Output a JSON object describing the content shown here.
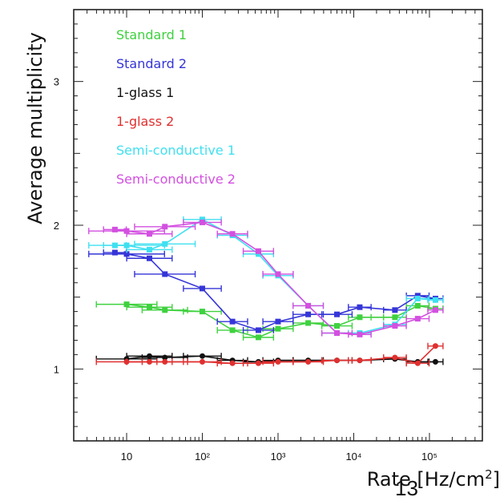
{
  "page_number": "13",
  "chart_data": {
    "type": "line",
    "title": "",
    "xlabel": "Rate [Hz/cm²]",
    "ylabel": "Average multiplicity",
    "xscale": "log",
    "xlim": [
      2,
      500000
    ],
    "ylim": [
      0.5,
      3.5
    ],
    "x_ticks": [
      {
        "value": 10,
        "label": "10"
      },
      {
        "value": 100,
        "label": "10²"
      },
      {
        "value": 1000,
        "label": "10³"
      },
      {
        "value": 10000,
        "label": "10⁴"
      },
      {
        "value": 100000,
        "label": "10⁵"
      }
    ],
    "y_ticks": [
      {
        "value": 1,
        "label": "1"
      },
      {
        "value": 2,
        "label": "2"
      },
      {
        "value": 3,
        "label": "3"
      }
    ],
    "legend_position": "top-left",
    "series": [
      {
        "name": "Standard 1",
        "color": "#3fd13f",
        "x": [
          10,
          20,
          32,
          100,
          250,
          550,
          1000,
          2500,
          6000,
          12000,
          35000,
          70000,
          120000
        ],
        "y": [
          1.45,
          1.43,
          1.41,
          1.4,
          1.27,
          1.22,
          1.28,
          1.32,
          1.3,
          1.36,
          1.36,
          1.44,
          1.42
        ],
        "xerr": [
          0.4,
          0.3,
          0.3,
          0.25,
          0.2,
          0.2,
          0.2,
          0.2,
          0.2,
          0.15,
          0.15,
          0.15,
          0.1
        ]
      },
      {
        "name": "Standard 2",
        "color": "#3535d8",
        "x": [
          7,
          10,
          20,
          32,
          100,
          250,
          550,
          1000,
          2500,
          6000,
          12000,
          35000,
          70000,
          120000
        ],
        "y": [
          1.81,
          1.8,
          1.77,
          1.66,
          1.56,
          1.33,
          1.27,
          1.33,
          1.38,
          1.38,
          1.43,
          1.41,
          1.51,
          1.49
        ],
        "xerr": [
          0.15,
          0.5,
          0.3,
          0.4,
          0.25,
          0.2,
          0.2,
          0.2,
          0.2,
          0.2,
          0.15,
          0.15,
          0.15,
          0.1
        ]
      },
      {
        "name": "1-glass 1",
        "color": "#111111",
        "x": [
          10,
          20,
          32,
          100,
          250,
          550,
          1000,
          2500,
          6000,
          12000,
          35000,
          70000,
          120000
        ],
        "y": [
          1.07,
          1.09,
          1.08,
          1.09,
          1.06,
          1.05,
          1.06,
          1.06,
          1.06,
          1.06,
          1.07,
          1.05,
          1.05
        ],
        "xerr": [
          0.4,
          0.3,
          0.3,
          0.25,
          0.2,
          0.2,
          0.2,
          0.2,
          0.2,
          0.15,
          0.15,
          0.15,
          0.1
        ]
      },
      {
        "name": "1-glass 2",
        "color": "#e03030",
        "x": [
          10,
          20,
          32,
          100,
          250,
          550,
          1000,
          2500,
          6000,
          12000,
          35000,
          70000,
          120000
        ],
        "y": [
          1.05,
          1.05,
          1.05,
          1.05,
          1.04,
          1.04,
          1.05,
          1.05,
          1.06,
          1.06,
          1.08,
          1.04,
          1.16
        ],
        "xerr": [
          0.4,
          0.3,
          0.3,
          0.25,
          0.2,
          0.2,
          0.2,
          0.2,
          0.2,
          0.15,
          0.15,
          0.15,
          0.1
        ]
      },
      {
        "name": "Semi-conductive 1",
        "color": "#3fe0f0",
        "x": [
          7,
          10,
          20,
          32,
          100,
          250,
          550,
          1000,
          2500,
          6000,
          12000,
          35000,
          70000,
          120000
        ],
        "y": [
          1.86,
          1.86,
          1.83,
          1.87,
          2.04,
          1.93,
          1.8,
          1.65,
          1.44,
          1.25,
          1.25,
          1.31,
          1.49,
          1.48
        ],
        "xerr": [
          0.15,
          0.5,
          0.3,
          0.4,
          0.25,
          0.2,
          0.2,
          0.2,
          0.2,
          0.2,
          0.15,
          0.15,
          0.15,
          0.1
        ]
      },
      {
        "name": "Semi-conductive 2",
        "color": "#d350e0",
        "x": [
          7,
          10,
          20,
          32,
          100,
          250,
          550,
          1000,
          2500,
          6000,
          12000,
          35000,
          70000,
          120000
        ],
        "y": [
          1.97,
          1.96,
          1.94,
          1.99,
          2.02,
          1.94,
          1.82,
          1.66,
          1.44,
          1.25,
          1.24,
          1.3,
          1.35,
          1.41
        ],
        "xerr": [
          0.15,
          0.5,
          0.3,
          0.4,
          0.25,
          0.2,
          0.2,
          0.2,
          0.2,
          0.2,
          0.15,
          0.15,
          0.15,
          0.1
        ]
      }
    ]
  }
}
